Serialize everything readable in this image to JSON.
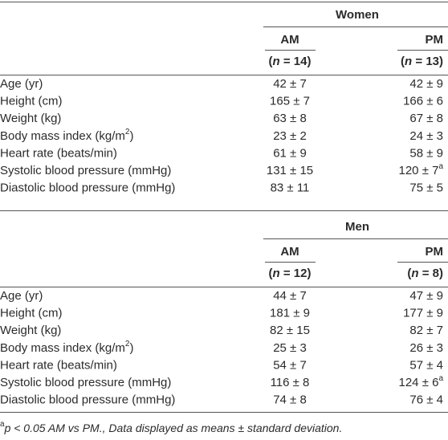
{
  "sections": [
    {
      "group": "Women",
      "columns": [
        {
          "label": "AM",
          "n": {
            "open": "(",
            "var": "n",
            "rest": " = 14)"
          }
        },
        {
          "label": "PM",
          "n": {
            "open": "(",
            "var": "n",
            "rest": " = 13)"
          }
        }
      ],
      "rows": [
        {
          "label": "Age (yr)",
          "values": [
            "42 ± 7",
            "42 ± 9"
          ]
        },
        {
          "label": "Height (cm)",
          "values": [
            "165 ± 7",
            "166 ± 6"
          ]
        },
        {
          "label": "Weight (kg)",
          "values": [
            "63 ± 8",
            "67 ± 8"
          ]
        },
        {
          "label": {
            "text": "Body mass index (kg/m",
            "sup": "2",
            "after": ")"
          },
          "values": [
            "23 ± 2",
            "24 ± 3"
          ]
        },
        {
          "label": "Heart rate (beats/min)",
          "values": [
            "61 ± 9",
            "58 ± 9"
          ]
        },
        {
          "label": "Systolic blood pressure (mmHg)",
          "values": [
            "131 ± 15",
            {
              "text": "120 ± 7",
              "sup": "a"
            }
          ]
        },
        {
          "label": "Diastolic blood pressure (mmHg)",
          "values": [
            "83 ± 11",
            "75 ± 5"
          ]
        }
      ]
    },
    {
      "group": "Men",
      "columns": [
        {
          "label": "AM",
          "n": {
            "open": "(",
            "var": "n",
            "rest": " = 12)"
          }
        },
        {
          "label": "PM",
          "n": {
            "open": "(",
            "var": "n",
            "rest": " = 8)"
          }
        }
      ],
      "rows": [
        {
          "label": "Age (yr)",
          "values": [
            "44 ± 7",
            "47 ± 9"
          ]
        },
        {
          "label": "Height (cm)",
          "values": [
            "181 ± 9",
            "177 ± 9"
          ]
        },
        {
          "label": "Weight (kg)",
          "values": [
            "82 ± 15",
            "82 ± 7"
          ]
        },
        {
          "label": {
            "text": "Body mass index (kg/m",
            "sup": "2",
            "after": ")"
          },
          "values": [
            "25 ± 3",
            "26 ± 3"
          ]
        },
        {
          "label": "Heart rate (beats/min)",
          "values": [
            "54 ± 7",
            "57 ± 4"
          ]
        },
        {
          "label": "Systolic blood pressure (mmHg)",
          "values": [
            "116 ± 8",
            {
              "text": "124 ± 6",
              "sup": "a"
            }
          ]
        },
        {
          "label": "Diastolic blood pressure (mmHg)",
          "values": [
            "74 ± 8",
            "76 ± 4"
          ]
        }
      ]
    }
  ],
  "footnote": {
    "mark": "a",
    "italic": "p < 0.05 AM vs PM.,",
    "text": " Data displayed as means ± standard deviation."
  }
}
